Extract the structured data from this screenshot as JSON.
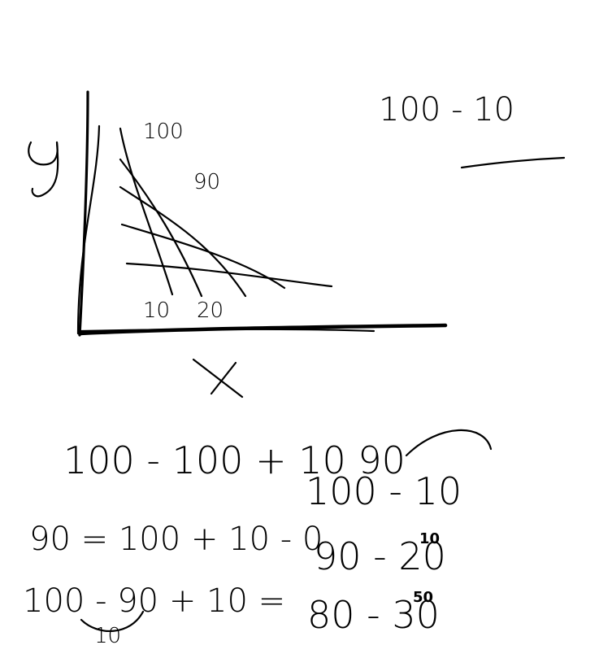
{
  "canvas": {
    "background": "#ffffff",
    "ink_color": "#000000"
  },
  "graph": {
    "y_axis_label": "y",
    "x_axis_label": "X",
    "curve_labels": [
      "100",
      "90",
      "10",
      "20"
    ]
  },
  "notes": {
    "top_right": "100 - 10",
    "middle": "100 - 100 + 10 90",
    "bottom_left": [
      "90 = 100 + 10 - 0",
      "100 - 90 + 10 =",
      "10"
    ],
    "bottom_right": [
      "100 - 10",
      "90 - 20",
      "80 - 30",
      "10",
      "50"
    ]
  }
}
